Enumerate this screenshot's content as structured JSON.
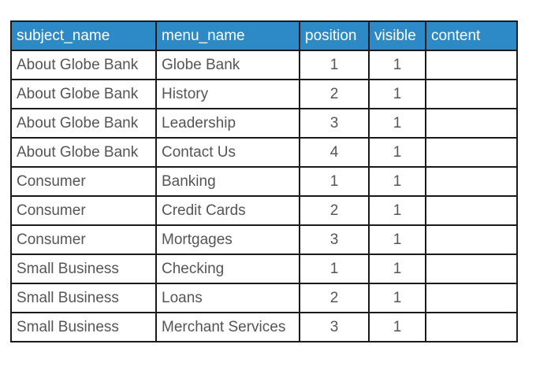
{
  "table": {
    "headers": [
      "subject_name",
      "menu_name",
      "position",
      "visible",
      "content"
    ],
    "rows": [
      [
        "About Globe Bank",
        "Globe Bank",
        "1",
        "1",
        ""
      ],
      [
        "About Globe Bank",
        "History",
        "2",
        "1",
        ""
      ],
      [
        "About Globe Bank",
        "Leadership",
        "3",
        "1",
        ""
      ],
      [
        "About Globe Bank",
        "Contact Us",
        "4",
        "1",
        ""
      ],
      [
        "Consumer",
        "Banking",
        "1",
        "1",
        ""
      ],
      [
        "Consumer",
        "Credit Cards",
        "2",
        "1",
        ""
      ],
      [
        "Consumer",
        "Mortgages",
        "3",
        "1",
        ""
      ],
      [
        "Small Business",
        "Checking",
        "1",
        "1",
        ""
      ],
      [
        "Small Business",
        "Loans",
        "2",
        "1",
        ""
      ],
      [
        "Small Business",
        "Merchant Services",
        "3",
        "1",
        ""
      ]
    ]
  },
  "colors": {
    "header_bg": "#2d8ac7",
    "header_text": "#ffffff",
    "cell_text": "#555555",
    "border": "#1a1a1a"
  }
}
